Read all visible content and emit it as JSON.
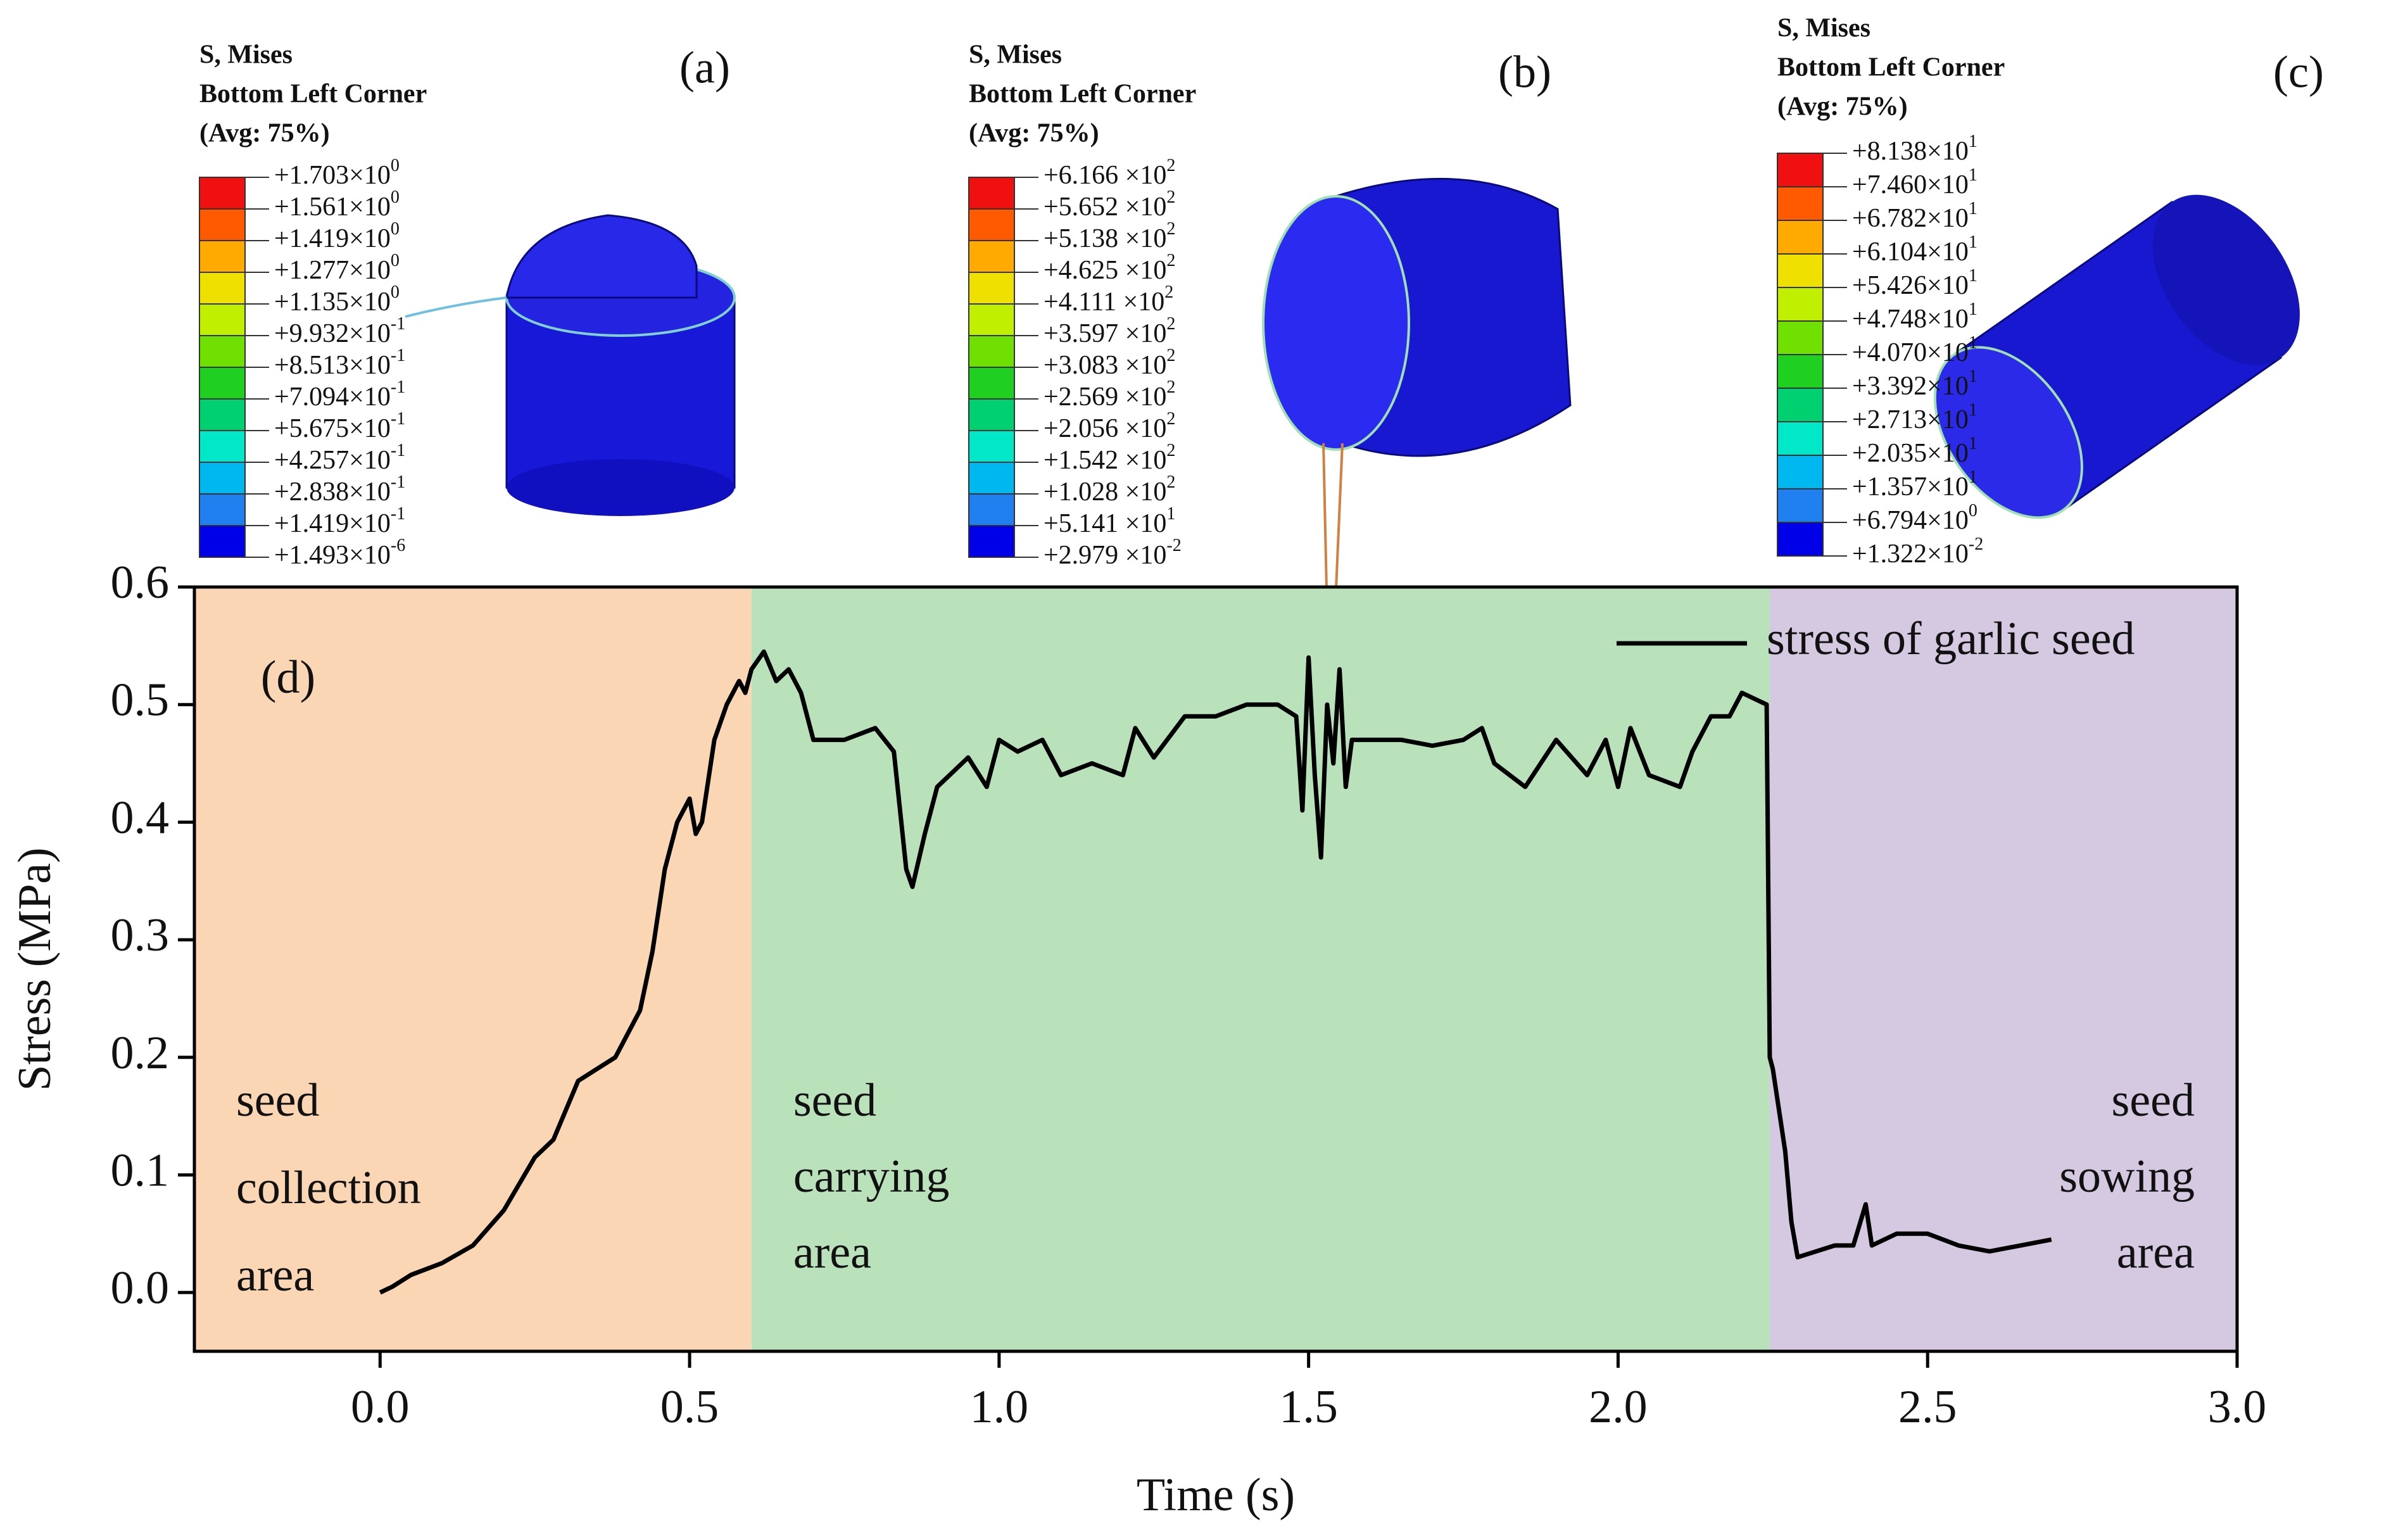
{
  "panels": [
    {
      "label": "(a)",
      "header": [
        "S, Mises",
        "Bottom Left Corner",
        "(Avg: 75%)"
      ],
      "levels": [
        {
          "text": "+1.703×10",
          "exp": "0"
        },
        {
          "text": "+1.561×10",
          "exp": "0"
        },
        {
          "text": "+1.419×10",
          "exp": "0"
        },
        {
          "text": "+1.277×10",
          "exp": "0"
        },
        {
          "text": "+1.135×10",
          "exp": "0"
        },
        {
          "text": "+9.932×10",
          "exp": "-1"
        },
        {
          "text": "+8.513×10",
          "exp": "-1"
        },
        {
          "text": "+7.094×10",
          "exp": "-1"
        },
        {
          "text": "+5.675×10",
          "exp": "-1"
        },
        {
          "text": "+4.257×10",
          "exp": "-1"
        },
        {
          "text": "+2.838×10",
          "exp": "-1"
        },
        {
          "text": "+1.419×10",
          "exp": "-1"
        },
        {
          "text": "+1.493×10",
          "exp": "-6"
        }
      ]
    },
    {
      "label": "(b)",
      "header": [
        "S, Mises",
        "Bottom Left Corner",
        "(Avg: 75%)"
      ],
      "levels": [
        {
          "text": "+6.166 ×10",
          "exp": "2"
        },
        {
          "text": "+5.652 ×10",
          "exp": "2"
        },
        {
          "text": "+5.138 ×10",
          "exp": "2"
        },
        {
          "text": "+4.625 ×10",
          "exp": "2"
        },
        {
          "text": "+4.111 ×10",
          "exp": "2"
        },
        {
          "text": "+3.597 ×10",
          "exp": "2"
        },
        {
          "text": "+3.083 ×10",
          "exp": "2"
        },
        {
          "text": "+2.569 ×10",
          "exp": "2"
        },
        {
          "text": "+2.056 ×10",
          "exp": "2"
        },
        {
          "text": "+1.542 ×10",
          "exp": "2"
        },
        {
          "text": "+1.028 ×10",
          "exp": "2"
        },
        {
          "text": "+5.141 ×10",
          "exp": "1"
        },
        {
          "text": "+2.979 ×10",
          "exp": "-2"
        }
      ]
    },
    {
      "label": "(c)",
      "header": [
        "S, Mises",
        "Bottom Left Corner",
        "(Avg: 75%)"
      ],
      "levels": [
        {
          "text": "+8.138×10",
          "exp": "1"
        },
        {
          "text": "+7.460×10",
          "exp": "1"
        },
        {
          "text": "+6.782×10",
          "exp": "1"
        },
        {
          "text": "+6.104×10",
          "exp": "1"
        },
        {
          "text": "+5.426×10",
          "exp": "1"
        },
        {
          "text": "+4.748×10",
          "exp": "1"
        },
        {
          "text": "+4.070×10",
          "exp": "1"
        },
        {
          "text": "+3.392×10",
          "exp": "1"
        },
        {
          "text": "+2.713×10",
          "exp": "1"
        },
        {
          "text": "+2.035×10",
          "exp": "1"
        },
        {
          "text": "+1.357×10",
          "exp": "1"
        },
        {
          "text": "+6.794×10",
          "exp": "0"
        },
        {
          "text": "+1.322×10",
          "exp": "-2"
        }
      ]
    }
  ],
  "chart_data": {
    "type": "line",
    "annotation": "(d)",
    "x_label": "Time (s)",
    "y_label": "Stress (MPa)",
    "xlim": [
      -0.3,
      3.0
    ],
    "ylim": [
      -0.05,
      0.6
    ],
    "xticks": [
      {
        "value": 0,
        "label": "0.0"
      },
      0.5,
      {
        "value": 1,
        "label": "1.0"
      },
      1.5,
      {
        "value": 2,
        "label": "2.0"
      },
      2.5,
      {
        "value": 3,
        "label": "3.0"
      }
    ],
    "yticks": [
      {
        "value": 0,
        "label": "0.0"
      },
      0.1,
      0.2,
      0.3,
      0.4,
      0.5,
      0.6
    ],
    "legend": "upper right",
    "regions": [
      {
        "lines": [
          "seed",
          "collection",
          "area"
        ],
        "from": -0.3,
        "to": 0.6,
        "color": "#fad6b4"
      },
      {
        "lines": [
          "seed",
          "carrying",
          "area"
        ],
        "from": 0.6,
        "to": 2.245,
        "color": "#b9e2bb"
      },
      {
        "lines": [
          "seed",
          "sowing",
          "area"
        ],
        "from": 2.245,
        "to": 3.0,
        "color": "#d4c9e1"
      }
    ],
    "x": [
      0,
      0.02,
      0.05,
      0.1,
      0.15,
      0.2,
      0.25,
      0.28,
      0.32,
      0.35,
      0.38,
      0.4,
      0.42,
      0.44,
      0.46,
      0.48,
      0.5,
      0.51,
      0.52,
      0.54,
      0.56,
      0.58,
      0.59,
      0.6,
      0.62,
      0.64,
      0.66,
      0.68,
      0.7,
      0.75,
      0.8,
      0.83,
      0.85,
      0.86,
      0.88,
      0.9,
      0.95,
      0.98,
      1.0,
      1.03,
      1.07,
      1.1,
      1.15,
      1.2,
      1.22,
      1.25,
      1.3,
      1.35,
      1.4,
      1.45,
      1.48,
      1.49,
      1.5,
      1.51,
      1.52,
      1.53,
      1.54,
      1.55,
      1.56,
      1.57,
      1.65,
      1.7,
      1.75,
      1.78,
      1.8,
      1.85,
      1.9,
      1.95,
      1.98,
      2.0,
      2.02,
      2.05,
      2.1,
      2.12,
      2.15,
      2.18,
      2.2,
      2.24,
      2.245,
      2.25,
      2.27,
      2.28,
      2.29,
      2.32,
      2.35,
      2.38,
      2.4,
      2.41,
      2.45,
      2.5,
      2.55,
      2.6,
      2.65,
      2.7
    ],
    "series": [
      {
        "name": "stress of garlic seed",
        "color": "#000000",
        "values": [
          0,
          0.005,
          0.015,
          0.025,
          0.04,
          0.07,
          0.115,
          0.13,
          0.18,
          0.19,
          0.2,
          0.22,
          0.24,
          0.29,
          0.36,
          0.4,
          0.42,
          0.39,
          0.4,
          0.47,
          0.5,
          0.52,
          0.51,
          0.53,
          0.545,
          0.52,
          0.53,
          0.51,
          0.47,
          0.47,
          0.48,
          0.46,
          0.36,
          0.345,
          0.39,
          0.43,
          0.455,
          0.43,
          0.47,
          0.46,
          0.47,
          0.44,
          0.45,
          0.44,
          0.48,
          0.455,
          0.49,
          0.49,
          0.5,
          0.5,
          0.49,
          0.41,
          0.54,
          0.44,
          0.37,
          0.5,
          0.45,
          0.53,
          0.43,
          0.47,
          0.47,
          0.465,
          0.47,
          0.48,
          0.45,
          0.43,
          0.47,
          0.44,
          0.47,
          0.43,
          0.48,
          0.44,
          0.43,
          0.46,
          0.49,
          0.49,
          0.51,
          0.5,
          0.2,
          0.19,
          0.12,
          0.06,
          0.03,
          0.035,
          0.04,
          0.04,
          0.075,
          0.04,
          0.05,
          0.05,
          0.04,
          0.035,
          0.04,
          0.045
        ]
      }
    ]
  }
}
